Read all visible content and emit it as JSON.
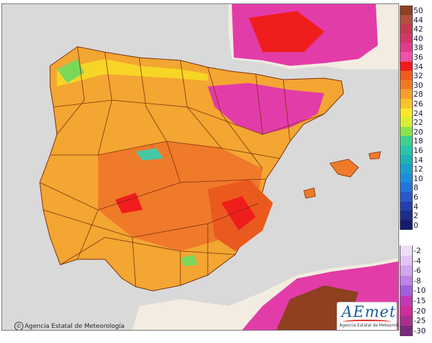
{
  "map": {
    "credit": "Agencia Estatal de Meteorología",
    "credit_symbol": "©",
    "logo_text": "AEmet",
    "logo_subtext": "Agencia Estatal de Meteorología",
    "colors": {
      "sea": "#d9d9d9",
      "land_outside": "#f3ece0",
      "base_land": "#f3a632",
      "hot": "#ef7a2a",
      "hotter": "#ea5a1e",
      "red": "#f01d1d",
      "magenta": "#e23ca8",
      "cool_yellow": "#f6d524",
      "green": "#7bd75a",
      "teal": "#45c8a5",
      "borders": "#7a2a0c"
    }
  },
  "legend": {
    "units_note": "",
    "positive": [
      {
        "label": "50",
        "color": "#8e4020"
      },
      {
        "label": "44",
        "color": "#b4503f"
      },
      {
        "label": "42",
        "color": "#c23a4e"
      },
      {
        "label": "40",
        "color": "#d43568"
      },
      {
        "label": "38",
        "color": "#e23a8a"
      },
      {
        "label": "36",
        "color": "#f64fa8"
      },
      {
        "label": "34",
        "color": "#f41a1a"
      },
      {
        "label": "32",
        "color": "#f45a1a"
      },
      {
        "label": "30",
        "color": "#f57b22"
      },
      {
        "label": "28",
        "color": "#f8a02a"
      },
      {
        "label": "26",
        "color": "#f8c42a"
      },
      {
        "label": "24",
        "color": "#fde627"
      },
      {
        "label": "22",
        "color": "#d9ee35"
      },
      {
        "label": "20",
        "color": "#8be24b"
      },
      {
        "label": "18",
        "color": "#3fd18b"
      },
      {
        "label": "16",
        "color": "#27c6a8"
      },
      {
        "label": "14",
        "color": "#1fb3b8"
      },
      {
        "label": "12",
        "color": "#1a9fcc"
      },
      {
        "label": "10",
        "color": "#1e8cdc"
      },
      {
        "label": "8",
        "color": "#2374dc"
      },
      {
        "label": "6",
        "color": "#2858c8"
      },
      {
        "label": "4",
        "color": "#2440a8"
      },
      {
        "label": "2",
        "color": "#1e2c8c"
      },
      {
        "label": "0",
        "color": "#141c6c"
      }
    ],
    "negative": [
      {
        "label": "-2",
        "color": "#efdcf5"
      },
      {
        "label": "-4",
        "color": "#e2c4f0"
      },
      {
        "label": "-6",
        "color": "#d1a6ec"
      },
      {
        "label": "-8",
        "color": "#bb84e6"
      },
      {
        "label": "-10",
        "color": "#a15fdd"
      },
      {
        "label": "-15",
        "color": "#c03ab8"
      },
      {
        "label": "-20",
        "color": "#d02c9a"
      },
      {
        "label": "-25",
        "color": "#a8308c"
      },
      {
        "label": "-30",
        "color": "#7a2a78"
      }
    ]
  }
}
